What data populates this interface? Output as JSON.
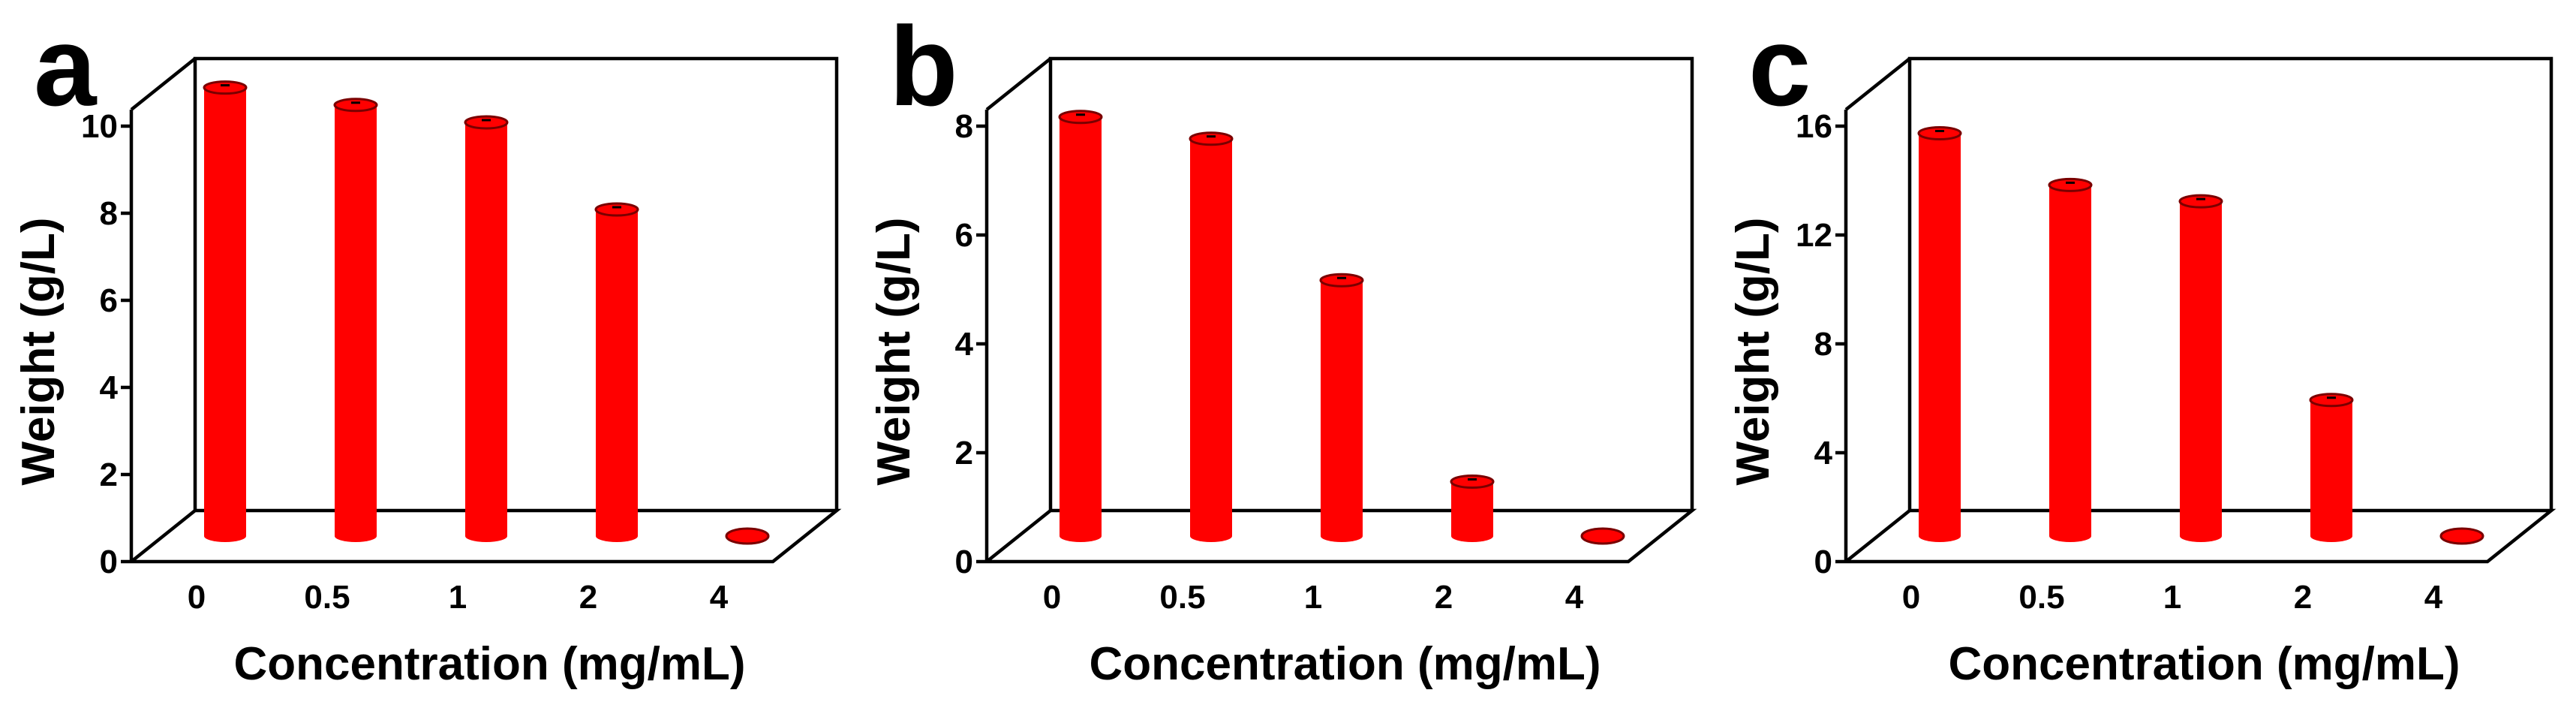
{
  "chart_data": [
    {
      "panel": "a",
      "type": "bar",
      "title": "",
      "xlabel": "Concentration (mg/mL)",
      "ylabel": "Weight (g/L)",
      "categories": [
        "0",
        "0.5",
        "1",
        "2",
        "4"
      ],
      "values": [
        10.3,
        9.9,
        9.5,
        7.5,
        0
      ],
      "ylim": [
        0,
        10
      ],
      "yticks": [
        "0",
        "2",
        "4",
        "6",
        "8",
        "10"
      ],
      "bar_color": "#ff0000",
      "projection": "3d"
    },
    {
      "panel": "b",
      "type": "bar",
      "title": "",
      "xlabel": "Concentration (mg/mL)",
      "ylabel": "Weight (g/L)",
      "categories": [
        "0",
        "0.5",
        "1",
        "2",
        "4"
      ],
      "values": [
        7.7,
        7.3,
        4.7,
        1.0,
        0
      ],
      "ylim": [
        0,
        8
      ],
      "yticks": [
        "0",
        "2",
        "4",
        "6",
        "8"
      ],
      "bar_color": "#ff0000",
      "projection": "3d"
    },
    {
      "panel": "c",
      "type": "bar",
      "title": "",
      "xlabel": "Concentration (mg/mL)",
      "ylabel": "Weight (g/L)",
      "categories": [
        "0",
        "0.5",
        "1",
        "2",
        "4"
      ],
      "values": [
        14.8,
        12.9,
        12.3,
        5.0,
        0
      ],
      "ylim": [
        0,
        16
      ],
      "yticks": [
        "0",
        "4",
        "8",
        "12",
        "16"
      ],
      "bar_color": "#ff0000",
      "projection": "3d"
    }
  ]
}
